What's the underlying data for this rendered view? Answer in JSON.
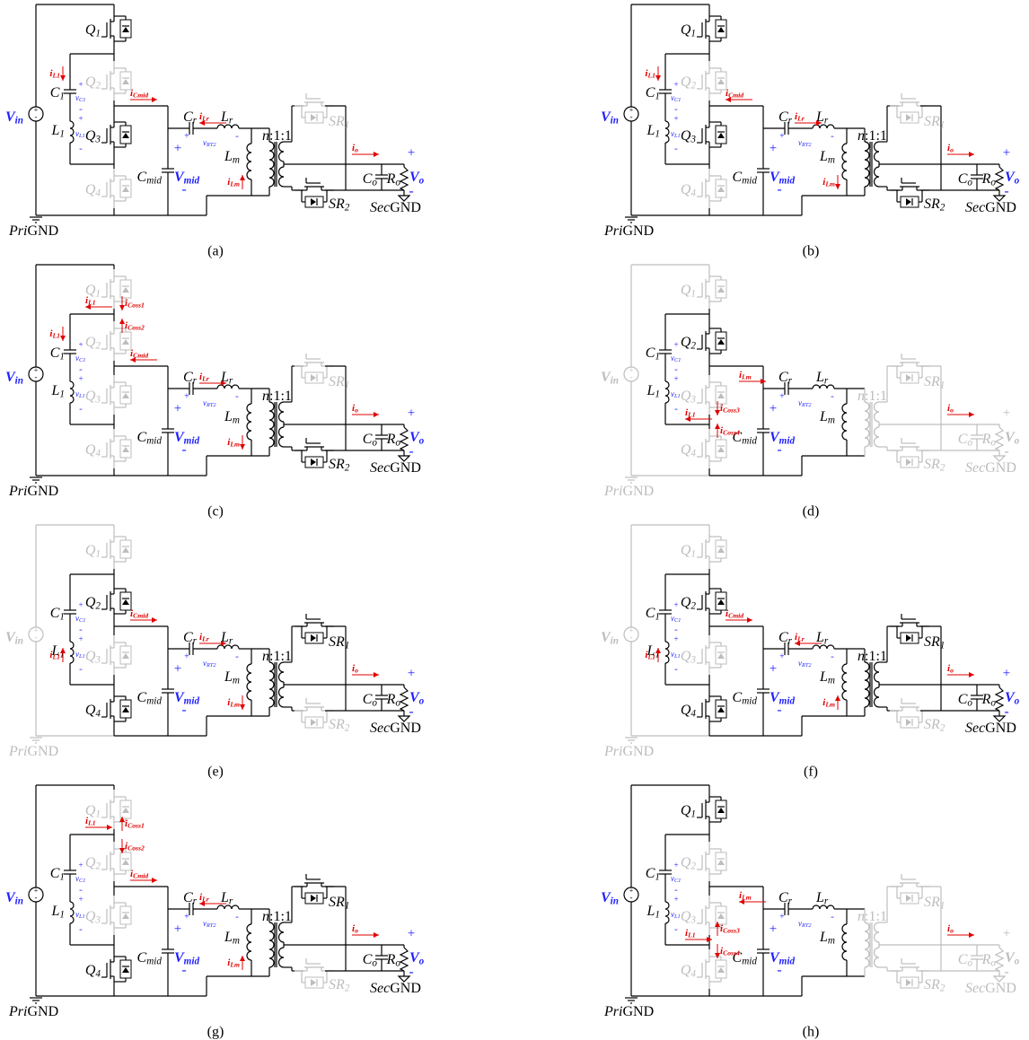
{
  "panels": [
    {
      "caption": "(a)",
      "currents": [
        {
          "t": "i",
          "s": "L1"
        },
        {
          "t": "i",
          "s": "Cmid"
        },
        {
          "t": "i",
          "s": "Lr"
        },
        {
          "t": "i",
          "s": "Lm"
        },
        {
          "t": "i",
          "s": "o"
        }
      ]
    },
    {
      "caption": "(b)",
      "currents": [
        {
          "t": "i",
          "s": "L1"
        },
        {
          "t": "i",
          "s": "Cmid"
        },
        {
          "t": "i",
          "s": "Lr"
        },
        {
          "t": "i",
          "s": "Lm"
        },
        {
          "t": "i",
          "s": "o"
        }
      ]
    },
    {
      "caption": "(c)",
      "currents": [
        {
          "t": "i",
          "s": "L1"
        },
        {
          "t": "i",
          "s": "Coss1"
        },
        {
          "t": "i",
          "s": "Coss2"
        },
        {
          "t": "i",
          "s": "L1"
        },
        {
          "t": "i",
          "s": "Cmid"
        },
        {
          "t": "i",
          "s": "Lr"
        },
        {
          "t": "i",
          "s": "Lm"
        },
        {
          "t": "i",
          "s": "o"
        }
      ]
    },
    {
      "caption": "(d)",
      "currents": [
        {
          "t": "i",
          "s": "Lm"
        },
        {
          "t": "i",
          "s": "L1"
        },
        {
          "t": "i",
          "s": "Coss3"
        },
        {
          "t": "i",
          "s": "Coss4"
        },
        {
          "t": "i",
          "s": "o"
        }
      ]
    },
    {
      "caption": "(e)",
      "currents": [
        {
          "t": "i",
          "s": "Cmid"
        },
        {
          "t": "i",
          "s": "L1"
        },
        {
          "t": "i",
          "s": "Lr"
        },
        {
          "t": "i",
          "s": "Lm"
        },
        {
          "t": "i",
          "s": "o"
        }
      ]
    },
    {
      "caption": "(f)",
      "currents": [
        {
          "t": "i",
          "s": "Cmid"
        },
        {
          "t": "i",
          "s": "Lr"
        },
        {
          "t": "i",
          "s": "L1"
        },
        {
          "t": "i",
          "s": "Lm"
        },
        {
          "t": "i",
          "s": "o"
        }
      ]
    },
    {
      "caption": "(g)",
      "currents": [
        {
          "t": "i",
          "s": "L1"
        },
        {
          "t": "i",
          "s": "Coss1"
        },
        {
          "t": "i",
          "s": "Coss2"
        },
        {
          "t": "i",
          "s": "Cmid"
        },
        {
          "t": "i",
          "s": "Lr"
        },
        {
          "t": "i",
          "s": "Lm"
        },
        {
          "t": "i",
          "s": "o"
        }
      ]
    },
    {
      "caption": "(h)",
      "currents": [
        {
          "t": "i",
          "s": "Lm"
        },
        {
          "t": "i",
          "s": "L1"
        },
        {
          "t": "i",
          "s": "Coss3"
        },
        {
          "t": "i",
          "s": "Coss4"
        },
        {
          "t": "i",
          "s": "o"
        }
      ]
    }
  ],
  "labels": [
    {
      "t": "V",
      "s": "in"
    },
    {
      "t": "Q",
      "s": "1"
    },
    {
      "t": "Q",
      "s": "2"
    },
    {
      "t": "Q",
      "s": "3"
    },
    {
      "t": "Q",
      "s": "4"
    },
    {
      "t": "C",
      "s": "1"
    },
    {
      "t": "L",
      "s": "1"
    },
    {
      "t": "v",
      "s": "C1"
    },
    {
      "t": "v",
      "s": "L1"
    },
    {
      "t": "C",
      "s": "r"
    },
    {
      "t": "L",
      "s": "r"
    },
    {
      "t": "v",
      "s": "RT2"
    },
    {
      "t": "L",
      "s": "m"
    },
    {
      "t": "C",
      "s": "mid"
    },
    {
      "t": "V",
      "s": "mid"
    },
    {
      "t": "n",
      "p": ":1:1"
    },
    {
      "t": "SR",
      "s": "1"
    },
    {
      "t": "SR",
      "s": "2"
    },
    {
      "t": "C",
      "s": "o"
    },
    {
      "t": "R",
      "s": "o"
    },
    {
      "t": "V",
      "s": "o"
    },
    {
      "t": "Pri",
      "p": "GND"
    },
    {
      "t": "Sec",
      "p": "GND"
    }
  ],
  "signs": {
    "plus": "+",
    "minus": "-"
  }
}
